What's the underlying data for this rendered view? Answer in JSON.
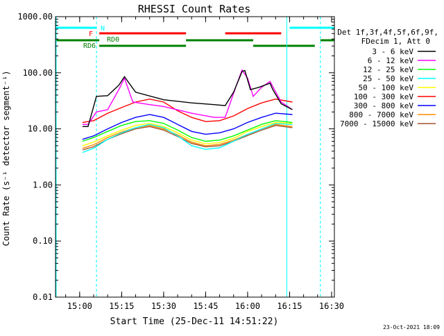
{
  "chart_data": {
    "type": "line",
    "title": "RHESSI Count Rates",
    "xlabel": "Start Time (25-Dec-11 14:51:22)",
    "ylabel": "Count Rate (s⁻¹ detector segment⁻¹)",
    "yscale": "log",
    "ylim": [
      0.01,
      1000
    ],
    "xlim": [
      "14:51:22",
      "16:31"
    ],
    "y_ticks": [
      "0.01",
      "0.10",
      "1.00",
      "10.00",
      "100.00",
      "1000.00"
    ],
    "x_ticks": [
      "15:00",
      "15:15",
      "15:30",
      "15:45",
      "16:00",
      "16:15",
      "16:30"
    ],
    "grid": false,
    "legend_position": "right",
    "legend_header": [
      "Det 1f,3f,4f,5f,6f,9f,",
      "FDecim 1, Att 0"
    ],
    "footer": "23-Oct-2021 18:09",
    "series": [
      {
        "name": "3 - 6 keV",
        "color": "#000000",
        "x": [
          "15:01",
          "15:03",
          "15:06",
          "15:10",
          "15:14",
          "15:16",
          "15:20",
          "15:30",
          "15:40",
          "15:48",
          "15:52",
          "15:55",
          "15:58",
          "15:59",
          "16:01",
          "16:04",
          "16:08",
          "16:09",
          "16:12",
          "16:16"
        ],
        "values": [
          11,
          11,
          38,
          39,
          60,
          85,
          45,
          33,
          29,
          27,
          26,
          45,
          105,
          110,
          50,
          55,
          65,
          50,
          28,
          22
        ]
      },
      {
        "name": "6 - 12 keV",
        "color": "#ff00ff",
        "x": [
          "15:01",
          "15:03",
          "15:06",
          "15:10",
          "15:14",
          "15:16",
          "15:19",
          "15:25",
          "15:30",
          "15:40",
          "15:48",
          "15:52",
          "15:56",
          "15:58",
          "16:00",
          "16:02",
          "16:05",
          "16:08",
          "16:12",
          "16:16"
        ],
        "values": [
          12,
          12,
          20,
          22,
          50,
          80,
          30,
          27,
          25,
          19,
          16,
          16,
          60,
          112,
          80,
          38,
          55,
          70,
          30,
          22
        ]
      },
      {
        "name": "12 - 25 keV",
        "color": "#00ff00",
        "x": [
          "15:01",
          "15:05",
          "15:10",
          "15:15",
          "15:20",
          "15:25",
          "15:30",
          "15:35",
          "15:40",
          "15:45",
          "15:50",
          "15:55",
          "16:00",
          "16:05",
          "16:10",
          "16:16"
        ],
        "values": [
          6,
          7,
          9,
          11.5,
          13.5,
          14,
          12.5,
          9.5,
          7,
          6,
          6.3,
          7.5,
          9.5,
          12,
          14,
          13
        ]
      },
      {
        "name": "25 - 50 keV",
        "color": "#00ffff",
        "x": [
          "15:01",
          "15:05",
          "15:10",
          "15:15",
          "15:20",
          "15:25",
          "15:30",
          "15:35",
          "15:40",
          "15:45",
          "15:50",
          "15:55",
          "16:00",
          "16:05",
          "16:10",
          "16:16"
        ],
        "values": [
          3.8,
          4.5,
          6.5,
          8.5,
          10.5,
          12,
          10.5,
          7.5,
          5,
          4.3,
          4.6,
          6,
          8,
          10,
          12.5,
          12
        ]
      },
      {
        "name": "50 - 100 keV",
        "color": "#ffff00",
        "x": [
          "15:01",
          "15:05",
          "15:10",
          "15:15",
          "15:20",
          "15:25",
          "15:30",
          "15:35",
          "15:40",
          "15:45",
          "15:50",
          "15:55",
          "16:00",
          "16:05",
          "16:10",
          "16:16"
        ],
        "values": [
          5,
          5.8,
          7.5,
          9.5,
          11.5,
          12.5,
          11,
          8.5,
          6.3,
          5.4,
          5.7,
          6.8,
          9,
          11,
          13,
          12.5
        ]
      },
      {
        "name": "100 - 300 keV",
        "color": "#ff0000",
        "x": [
          "15:01",
          "15:05",
          "15:10",
          "15:15",
          "15:20",
          "15:25",
          "15:30",
          "15:35",
          "15:40",
          "15:45",
          "15:50",
          "15:55",
          "16:00",
          "16:05",
          "16:10",
          "16:16"
        ],
        "values": [
          13,
          14,
          19,
          24,
          30,
          34,
          30,
          21,
          16,
          13.5,
          14,
          17,
          23,
          29,
          34,
          30
        ]
      },
      {
        "name": "300 - 800 keV",
        "color": "#0000ff",
        "x": [
          "15:01",
          "15:05",
          "15:10",
          "15:15",
          "15:20",
          "15:25",
          "15:30",
          "15:35",
          "15:40",
          "15:45",
          "15:50",
          "15:55",
          "16:00",
          "16:05",
          "16:10",
          "16:16"
        ],
        "values": [
          6.5,
          7.5,
          10,
          13,
          16,
          18,
          16,
          12,
          9,
          8,
          8.5,
          10,
          13,
          16,
          19,
          18
        ]
      },
      {
        "name": "800 - 7000 keV",
        "color": "#ff8c00",
        "x": [
          "15:01",
          "15:05",
          "15:10",
          "15:15",
          "15:20",
          "15:25",
          "15:30",
          "15:35",
          "15:40",
          "15:45",
          "15:50",
          "15:55",
          "16:00",
          "16:05",
          "16:10",
          "16:16"
        ],
        "values": [
          4.5,
          5.2,
          7,
          8.8,
          10.5,
          11.5,
          10,
          7.8,
          5.8,
          5,
          5.3,
          6.3,
          8,
          10,
          12,
          11
        ]
      },
      {
        "name": "7000 - 15000 keV",
        "color": "#a0522d",
        "x": [
          "15:01",
          "15:05",
          "15:10",
          "15:15",
          "15:20",
          "15:25",
          "15:30",
          "15:35",
          "15:40",
          "15:45",
          "15:50",
          "15:55",
          "16:00",
          "16:05",
          "16:10",
          "16:16"
        ],
        "values": [
          4.2,
          4.8,
          6.5,
          8.2,
          10,
          11,
          9.5,
          7.3,
          5.5,
          4.8,
          5,
          6,
          7.6,
          9.5,
          11.5,
          10.5
        ]
      }
    ],
    "flag_bars": [
      {
        "label": "N",
        "color": "#00ffff",
        "level": 3,
        "segments": [
          [
            "14:51:22",
            "15:06"
          ],
          [
            "16:15",
            "16:31"
          ]
        ]
      },
      {
        "label": "F",
        "color": "#ff0000",
        "level": 2,
        "segments": [
          [
            "15:07",
            "15:38"
          ],
          [
            "15:52",
            "16:12"
          ]
        ]
      },
      {
        "label": "RD0",
        "color": "#008000",
        "level": 1,
        "segments": [
          [
            "14:51:22",
            "15:07"
          ],
          [
            "15:38",
            "16:02"
          ],
          [
            "16:26",
            "16:31"
          ]
        ]
      },
      {
        "label": "RD6",
        "color": "#008000",
        "level": 0,
        "segments": [
          [
            "15:07",
            "15:38"
          ],
          [
            "16:02",
            "16:24"
          ]
        ]
      }
    ],
    "vlines_dashed": [
      "15:06",
      "16:26"
    ],
    "vlines_solid": [
      "16:14"
    ]
  }
}
